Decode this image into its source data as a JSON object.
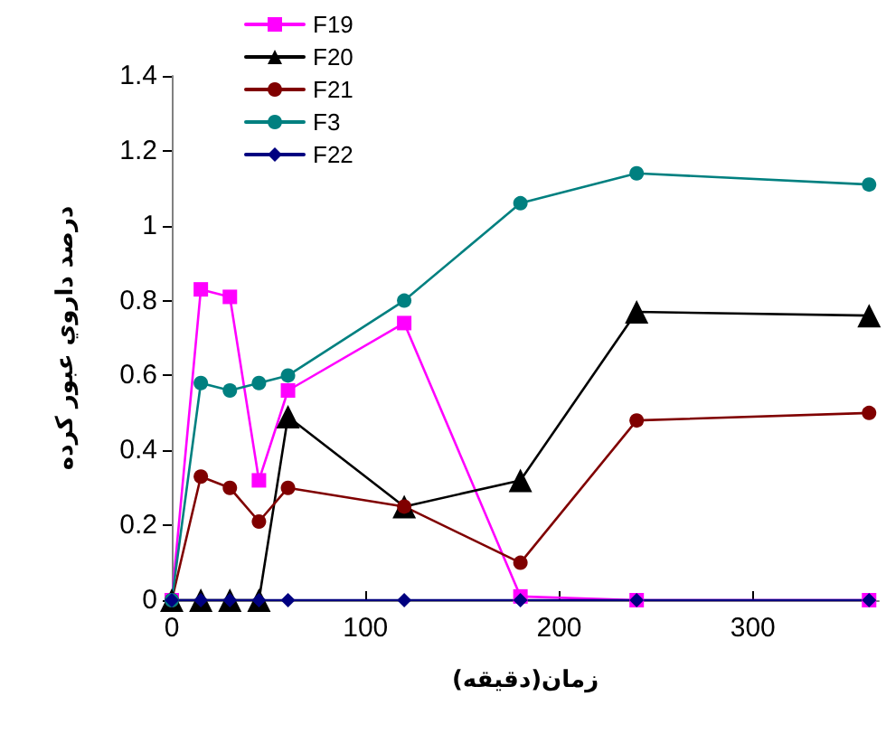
{
  "chart_data": {
    "type": "line",
    "xlabel": "زمان(دقيقه)",
    "ylabel": "درصد داروي عبور كرده",
    "x": [
      0,
      15,
      30,
      45,
      60,
      120,
      180,
      240,
      360
    ],
    "series": [
      {
        "name": "F19",
        "color": "#ff00ff",
        "marker": "square",
        "values": [
          0,
          0.83,
          0.81,
          0.32,
          0.56,
          0.74,
          0.01,
          0,
          0
        ]
      },
      {
        "name": "F20",
        "color": "#000000",
        "marker": "triangle",
        "values": [
          0,
          0,
          0,
          0,
          0.49,
          0.25,
          0.32,
          0.77,
          0.76
        ]
      },
      {
        "name": "F21",
        "color": "#800000",
        "marker": "circle",
        "values": [
          0,
          0.33,
          0.3,
          0.21,
          0.3,
          0.25,
          0.1,
          0.48,
          0.5
        ]
      },
      {
        "name": "F3",
        "color": "#008080",
        "marker": "circle",
        "values": [
          0,
          0.58,
          0.56,
          0.58,
          0.6,
          0.8,
          1.06,
          1.14,
          1.11
        ]
      },
      {
        "name": "F22",
        "color": "#000080",
        "marker": "diamond",
        "values": [
          0,
          0,
          0,
          0,
          0,
          0,
          0,
          0,
          0
        ]
      }
    ],
    "xlim": [
      0,
      365
    ],
    "xticks": [
      0,
      100,
      200,
      300
    ],
    "ylim": [
      0,
      1.4
    ],
    "yticks": [
      0,
      0.2,
      0.4,
      0.6,
      0.8,
      1,
      1.2,
      1.4
    ],
    "legend": "top left",
    "line_style": "solid"
  }
}
